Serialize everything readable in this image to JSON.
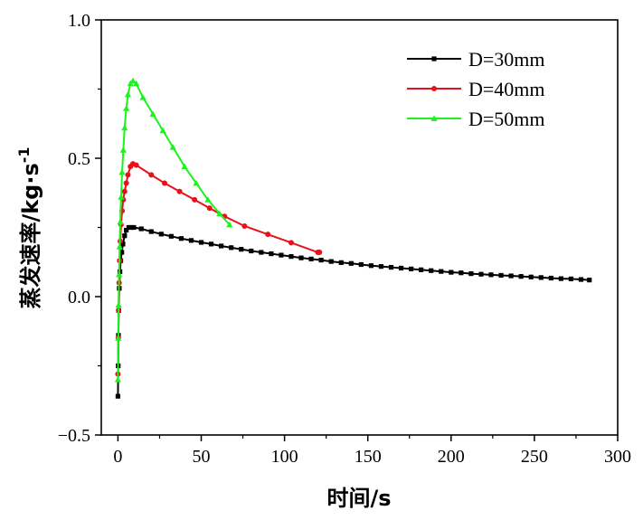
{
  "chart_data": {
    "type": "line",
    "title": "",
    "xlabel": "时间/s",
    "ylabel": "蒸发速率/kg·s",
    "ylabel_sup": "-1",
    "xlim": [
      -10,
      300
    ],
    "ylim": [
      -0.5,
      1.0
    ],
    "xticks": [
      0,
      50,
      100,
      150,
      200,
      250,
      300
    ],
    "xtick_labels": [
      "0",
      "50",
      "100",
      "150",
      "200",
      "250",
      "300"
    ],
    "yticks": [
      -0.5,
      0.0,
      0.5,
      1.0
    ],
    "ytick_labels": [
      "−0.5",
      "0.0",
      "0.5",
      "1.0"
    ],
    "legend_position": "top-right",
    "series": [
      {
        "name": "D=30mm",
        "color": "#000000",
        "marker": "square",
        "x": [
          0,
          0.15,
          0.3,
          0.5,
          0.8,
          1.2,
          1.7,
          2.3,
          3,
          4,
          5,
          6.5,
          8,
          9.5,
          14,
          20,
          26,
          32,
          38,
          44,
          50,
          56,
          62,
          68,
          74,
          80,
          86,
          92,
          98,
          104,
          110,
          116,
          122,
          128,
          134,
          140,
          146,
          152,
          158,
          164,
          170,
          176,
          182,
          188,
          194,
          200,
          206,
          212,
          218,
          224,
          230,
          236,
          242,
          248,
          254,
          260,
          266,
          272,
          278,
          283
        ],
        "y": [
          -0.36,
          -0.25,
          -0.14,
          -0.05,
          0.03,
          0.09,
          0.13,
          0.16,
          0.19,
          0.22,
          0.24,
          0.25,
          0.25,
          0.25,
          0.245,
          0.235,
          0.226,
          0.218,
          0.21,
          0.203,
          0.196,
          0.19,
          0.183,
          0.177,
          0.171,
          0.165,
          0.16,
          0.155,
          0.15,
          0.145,
          0.14,
          0.136,
          0.132,
          0.127,
          0.123,
          0.12,
          0.116,
          0.112,
          0.109,
          0.106,
          0.103,
          0.1,
          0.097,
          0.094,
          0.091,
          0.088,
          0.086,
          0.083,
          0.081,
          0.079,
          0.077,
          0.075,
          0.073,
          0.071,
          0.069,
          0.067,
          0.065,
          0.064,
          0.062,
          0.06
        ]
      },
      {
        "name": "D=40mm",
        "color": "#e8111b",
        "marker": "circle",
        "x": [
          0,
          0.2,
          0.4,
          0.7,
          1,
          1.4,
          1.9,
          2.5,
          3.2,
          4,
          5,
          6,
          7.5,
          9,
          11,
          20,
          28,
          37,
          46,
          55,
          64,
          76,
          90,
          104,
          120,
          121
        ],
        "y": [
          -0.28,
          -0.15,
          -0.05,
          0.05,
          0.13,
          0.2,
          0.26,
          0.31,
          0.35,
          0.38,
          0.41,
          0.44,
          0.47,
          0.48,
          0.475,
          0.44,
          0.41,
          0.38,
          0.35,
          0.32,
          0.29,
          0.255,
          0.225,
          0.195,
          0.16,
          0.16
        ]
      },
      {
        "name": "D=50mm",
        "color": "#1cf21c",
        "marker": "triangle",
        "x": [
          0,
          0.2,
          0.4,
          0.7,
          1,
          1.4,
          1.9,
          2.5,
          3.2,
          4,
          5,
          6,
          7.5,
          9,
          11,
          15,
          21,
          27,
          33,
          40,
          47,
          54,
          61,
          67
        ],
        "y": [
          -0.3,
          -0.15,
          -0.03,
          0.08,
          0.18,
          0.27,
          0.36,
          0.45,
          0.53,
          0.61,
          0.68,
          0.73,
          0.77,
          0.78,
          0.77,
          0.72,
          0.66,
          0.6,
          0.54,
          0.47,
          0.41,
          0.35,
          0.3,
          0.26
        ]
      }
    ]
  }
}
